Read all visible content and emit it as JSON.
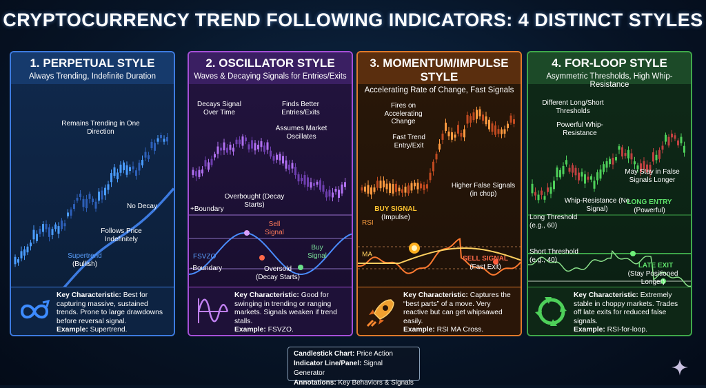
{
  "title": "CRYPTOCURRENCY TREND FOLLOWING INDICATORS: 4 DISTINCT STYLES",
  "panels": [
    {
      "heading": "1. PERPETUAL STYLE",
      "subheading": "Always Trending, Indefinite Duration",
      "color": "#3d7be0",
      "annotations": {
        "a1": "Remains Trending in One Direction",
        "a2": "No Decay",
        "a3": "Follows Price Indefinitely",
        "a4": "Supertrend",
        "a5": "(Bullish)"
      },
      "key_label": "Key Characteristic:",
      "key_text": " Best for capturing massive, sustained trends. Prone to large drawdowns before reversal signal.",
      "example_label": "Example:",
      "example_text": " Supertrend.",
      "icon": "infinity-arrow-icon"
    },
    {
      "heading": "2. OSCILLATOR STYLE",
      "subheading": "Waves & Decaying Signals for Entries/Exits",
      "color": "#a64fd8",
      "annotations": {
        "a1": "Decays Signal Over Time",
        "a2": "Finds Better Entries/Exits",
        "a3": "Assumes Market Oscillates",
        "a4": "Overbought (Decay Starts)",
        "a5": "+Boundary",
        "a6": "Sell Signal",
        "a7": "FSVZO",
        "a8": "Buy Signal",
        "a9": "-Boundary",
        "a10": "Oversold (Decay Starts)"
      },
      "key_label": "Key Characteristic:",
      "key_text": " Good for swinging in trending or ranging markets. Signals weaken if trend stalls.",
      "example_label": "Example:",
      "example_text": " FSVZO.",
      "icon": "sine-wave-icon"
    },
    {
      "heading": "3. MOMENTUM/IMPULSE STYLE",
      "subheading": "Accelerating Rate of Change, Fast Signals",
      "color": "#e07a2a",
      "annotations": {
        "a1": "Fires on Accelerating Change",
        "a2": "Fast Trend Entry/Exit",
        "a3": "Higher False Signals (in chop)",
        "a4": "BUY SIGNAL",
        "a5": "(Impulse)",
        "a6": "RSI",
        "a7": "MA",
        "a8": "SELL SIGNAL",
        "a9": "(Fast Exit)"
      },
      "key_label": "Key Characteristic:",
      "key_text": " Captures the “best parts” of a move. Very reactive but can get whipsawed easily.",
      "example_label": "Example:",
      "example_text": " RSI MA Cross.",
      "icon": "rocket-icon"
    },
    {
      "heading": "4. FOR-LOOP STYLE",
      "subheading": "Asymmetric Thresholds, High Whip-Resistance",
      "color": "#3fa84a",
      "annotations": {
        "a1": "Different Long/Short Thresholds",
        "a2": "Powerful Whip-Resistance",
        "a3": "May Stay in False Signals Longer",
        "a4": "Whip-Resistance (No Signal)",
        "a5": "LONG ENTRY",
        "a6": "(Powerful)",
        "a7": "Long Threshold (e.g., 60)",
        "a8": "Short Threshold (e.g., 40)",
        "a9": "LATE EXIT",
        "a10": "(Stay Positioned Longer)"
      },
      "key_label": "Key Characteristic:",
      "key_text": " Extremely stable in choppy markets. Trades off late exits for reduced false signals.",
      "example_label": "Example:",
      "example_text": " RSI-for-loop.",
      "icon": "cycle-arrows-icon"
    }
  ],
  "legend": {
    "l1_label": "Candlestick Chart:",
    "l1_text": " Price Action",
    "l2_label": "Indicator Line/Panel:",
    "l2_text": " Signal Generator",
    "l3_label": "Annotations:",
    "l3_text": " Key Behaviors & Signals"
  }
}
